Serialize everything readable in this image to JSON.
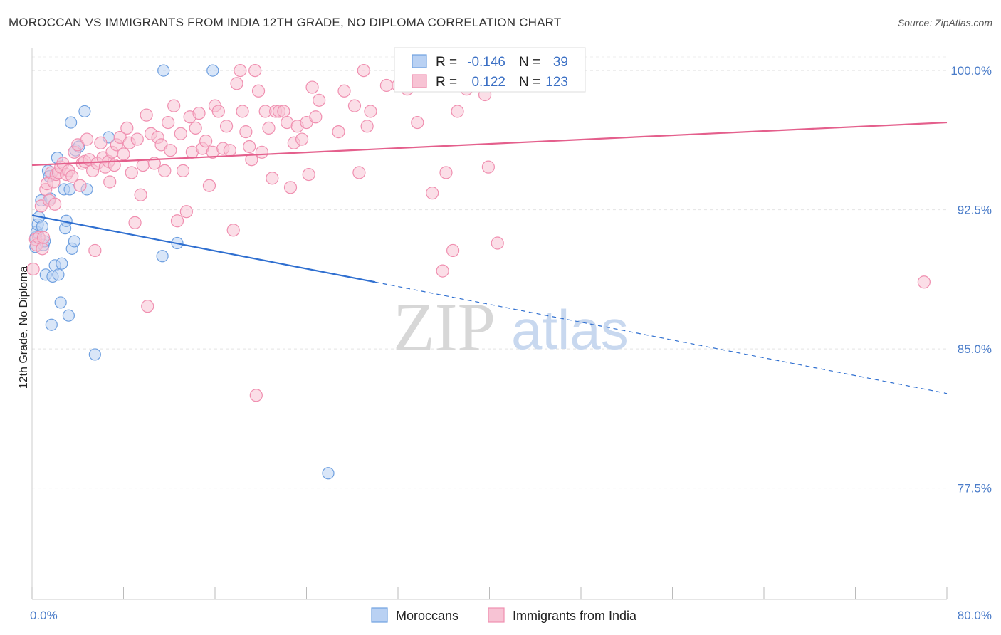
{
  "header": {
    "title": "MOROCCAN VS IMMIGRANTS FROM INDIA 12TH GRADE, NO DIPLOMA CORRELATION CHART",
    "source": "Source: ZipAtlas.com"
  },
  "watermark": {
    "zip": "ZIP",
    "atlas": "atlas"
  },
  "chart_data": {
    "type": "scatter",
    "title": "MOROCCAN VS IMMIGRANTS FROM INDIA 12TH GRADE, NO DIPLOMA CORRELATION CHART",
    "ylabel": "12th Grade, No Diploma",
    "xlabel": "",
    "xlim": [
      0,
      80
    ],
    "ylim": [
      71.5,
      101.5
    ],
    "x_tick_labels": [
      "0.0%",
      "80.0%"
    ],
    "y_ticks": [
      77.5,
      85.0,
      92.5,
      100.0
    ],
    "y_tick_labels": [
      "77.5%",
      "85.0%",
      "92.5%",
      "100.0%"
    ],
    "grid": true,
    "legend_position": "bottom-center",
    "stats": [
      {
        "r_label": "R =",
        "r_value": "-0.146",
        "n_label": "N =",
        "n_value": "39"
      },
      {
        "r_label": "R =",
        "r_value": "0.122",
        "n_label": "N =",
        "n_value": "123"
      }
    ],
    "series": [
      {
        "name": "Moroccans",
        "color": "#6fa0e0",
        "fill": "#b9d1f3",
        "trend_color": "#2f6fd0",
        "trend": {
          "x0": 0,
          "y0": 92.2,
          "x1": 30,
          "y1": 88.6,
          "dash_to_x": 80,
          "dash_to_y": 82.6
        },
        "points": [
          [
            0.3,
            91.0
          ],
          [
            0.3,
            90.5
          ],
          [
            0.4,
            91.3
          ],
          [
            0.5,
            91.7
          ],
          [
            0.6,
            92.1
          ],
          [
            0.8,
            93.0
          ],
          [
            0.9,
            91.6
          ],
          [
            1.0,
            90.6
          ],
          [
            1.1,
            90.8
          ],
          [
            1.2,
            89.0
          ],
          [
            1.4,
            94.6
          ],
          [
            1.5,
            94.3
          ],
          [
            1.6,
            93.1
          ],
          [
            1.7,
            86.3
          ],
          [
            1.8,
            88.9
          ],
          [
            2.0,
            89.5
          ],
          [
            2.2,
            95.3
          ],
          [
            2.3,
            89.0
          ],
          [
            2.5,
            87.5
          ],
          [
            2.6,
            89.6
          ],
          [
            2.8,
            93.6
          ],
          [
            2.9,
            91.5
          ],
          [
            3.0,
            91.9
          ],
          [
            3.2,
            86.8
          ],
          [
            3.3,
            93.6
          ],
          [
            3.4,
            97.2
          ],
          [
            3.5,
            90.4
          ],
          [
            3.7,
            90.8
          ],
          [
            3.8,
            95.7
          ],
          [
            4.1,
            95.9
          ],
          [
            4.6,
            97.8
          ],
          [
            4.8,
            93.6
          ],
          [
            5.5,
            84.7
          ],
          [
            6.7,
            96.4
          ],
          [
            11.4,
            90.0
          ],
          [
            11.5,
            100.0
          ],
          [
            12.7,
            90.7
          ],
          [
            15.8,
            100.0
          ],
          [
            25.9,
            78.3
          ]
        ]
      },
      {
        "name": "Immigrants from India",
        "color": "#f08fb0",
        "fill": "#f7c3d4",
        "trend_color": "#e45f8c",
        "trend": {
          "x0": 0,
          "y0": 94.9,
          "x1": 80,
          "y1": 97.2
        },
        "points": [
          [
            0.1,
            89.3
          ],
          [
            0.3,
            90.9
          ],
          [
            0.4,
            90.6
          ],
          [
            0.6,
            91.0
          ],
          [
            0.8,
            92.7
          ],
          [
            0.9,
            90.4
          ],
          [
            1.0,
            91.0
          ],
          [
            1.2,
            93.6
          ],
          [
            1.3,
            93.9
          ],
          [
            1.5,
            93.0
          ],
          [
            1.7,
            94.5
          ],
          [
            1.9,
            94.0
          ],
          [
            2.0,
            92.8
          ],
          [
            2.1,
            94.4
          ],
          [
            2.3,
            94.5
          ],
          [
            2.5,
            94.8
          ],
          [
            2.7,
            95.0
          ],
          [
            3.0,
            94.4
          ],
          [
            3.2,
            94.6
          ],
          [
            3.5,
            94.3
          ],
          [
            3.7,
            95.6
          ],
          [
            4.0,
            96.0
          ],
          [
            4.2,
            93.8
          ],
          [
            4.4,
            95.0
          ],
          [
            4.6,
            95.1
          ],
          [
            4.8,
            96.3
          ],
          [
            5.0,
            95.2
          ],
          [
            5.3,
            94.6
          ],
          [
            5.5,
            90.3
          ],
          [
            5.7,
            95.0
          ],
          [
            6.0,
            96.1
          ],
          [
            6.2,
            95.3
          ],
          [
            6.4,
            94.8
          ],
          [
            6.7,
            95.1
          ],
          [
            7.0,
            95.6
          ],
          [
            7.2,
            94.9
          ],
          [
            7.4,
            96.0
          ],
          [
            7.7,
            96.4
          ],
          [
            8.0,
            95.5
          ],
          [
            8.3,
            96.9
          ],
          [
            8.5,
            96.1
          ],
          [
            8.7,
            94.5
          ],
          [
            9.0,
            91.8
          ],
          [
            9.2,
            96.3
          ],
          [
            9.5,
            93.3
          ],
          [
            9.7,
            94.9
          ],
          [
            10.0,
            97.6
          ],
          [
            10.1,
            87.3
          ],
          [
            10.4,
            96.6
          ],
          [
            10.7,
            95.0
          ],
          [
            11.0,
            96.4
          ],
          [
            11.3,
            96.0
          ],
          [
            11.6,
            94.6
          ],
          [
            11.9,
            97.2
          ],
          [
            12.1,
            95.7
          ],
          [
            12.4,
            98.1
          ],
          [
            12.7,
            91.9
          ],
          [
            13.0,
            96.6
          ],
          [
            13.2,
            94.6
          ],
          [
            13.5,
            92.4
          ],
          [
            13.8,
            97.5
          ],
          [
            14.0,
            95.6
          ],
          [
            14.3,
            96.9
          ],
          [
            14.6,
            97.7
          ],
          [
            14.9,
            95.8
          ],
          [
            15.2,
            96.2
          ],
          [
            15.5,
            93.8
          ],
          [
            15.8,
            95.6
          ],
          [
            16.0,
            98.1
          ],
          [
            16.3,
            97.8
          ],
          [
            16.7,
            95.8
          ],
          [
            17.0,
            97.0
          ],
          [
            17.3,
            95.7
          ],
          [
            17.6,
            91.4
          ],
          [
            17.9,
            99.3
          ],
          [
            18.2,
            100.0
          ],
          [
            18.4,
            97.8
          ],
          [
            18.7,
            96.7
          ],
          [
            19.0,
            95.9
          ],
          [
            19.2,
            95.2
          ],
          [
            19.5,
            100.0
          ],
          [
            19.6,
            82.5
          ],
          [
            19.8,
            98.9
          ],
          [
            20.1,
            95.6
          ],
          [
            20.4,
            97.8
          ],
          [
            20.7,
            96.9
          ],
          [
            21.0,
            94.2
          ],
          [
            21.3,
            97.8
          ],
          [
            21.6,
            97.8
          ],
          [
            22.0,
            97.8
          ],
          [
            22.3,
            97.2
          ],
          [
            22.6,
            93.7
          ],
          [
            22.9,
            96.1
          ],
          [
            23.2,
            97.0
          ],
          [
            23.6,
            96.3
          ],
          [
            24.0,
            97.2
          ],
          [
            24.2,
            94.4
          ],
          [
            24.5,
            99.1
          ],
          [
            24.8,
            97.5
          ],
          [
            25.1,
            98.4
          ],
          [
            26.8,
            96.7
          ],
          [
            27.3,
            98.9
          ],
          [
            28.2,
            98.1
          ],
          [
            28.6,
            94.5
          ],
          [
            29.0,
            100.0
          ],
          [
            29.3,
            97.0
          ],
          [
            29.6,
            97.8
          ],
          [
            31.0,
            99.2
          ],
          [
            32.0,
            99.2
          ],
          [
            32.8,
            99.0
          ],
          [
            33.7,
            97.2
          ],
          [
            35.0,
            93.4
          ],
          [
            35.9,
            89.2
          ],
          [
            36.2,
            94.5
          ],
          [
            36.8,
            90.3
          ],
          [
            37.2,
            97.8
          ],
          [
            38.0,
            99.0
          ],
          [
            38.9,
            99.4
          ],
          [
            39.6,
            98.7
          ],
          [
            39.9,
            94.8
          ],
          [
            40.7,
            90.7
          ],
          [
            78.0,
            88.6
          ],
          [
            6.8,
            94.0
          ]
        ]
      }
    ]
  }
}
